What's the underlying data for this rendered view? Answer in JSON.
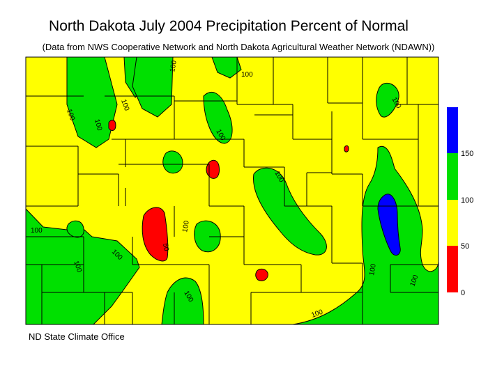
{
  "title": "North Dakota July 2004 Precipitation Percent of Normal",
  "subtitle": "(Data from NWS Cooperative Network and North Dakota Agricultural Weather Network (NDAWN))",
  "footer": "ND State Climate Office",
  "colors": {
    "below_50": "#ff0000",
    "from_50_to_100": "#ffff00",
    "from_100_to_150": "#00e000",
    "above_150": "#0000ff"
  },
  "legend": {
    "ticks": [
      "150",
      "100",
      "50",
      "0"
    ]
  },
  "contour_labels": [
    "100",
    "100",
    "100",
    "100",
    "100",
    "100",
    "100",
    "100",
    "100",
    "100",
    "100",
    "100",
    "100",
    "100",
    "100",
    "100",
    "50"
  ]
}
